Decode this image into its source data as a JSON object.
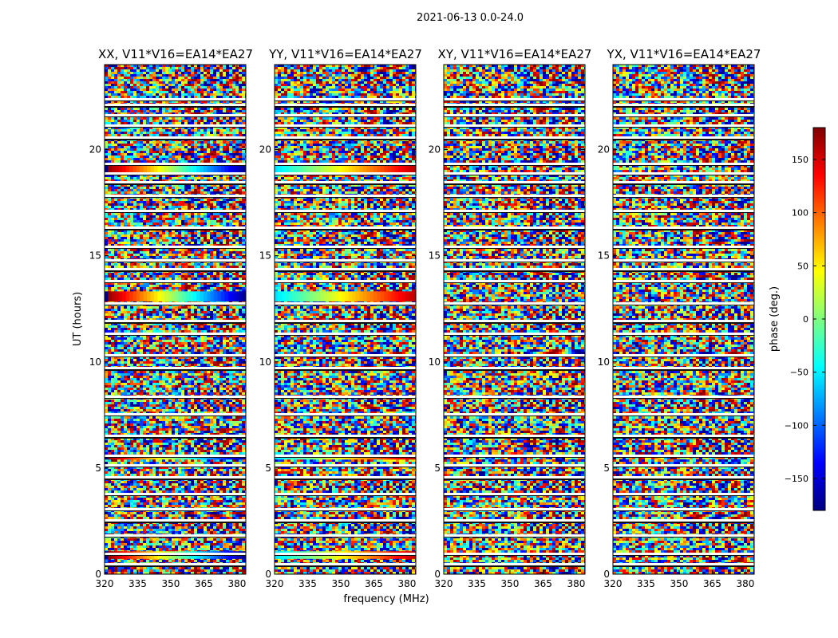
{
  "chart_data": {
    "type": "heatmap",
    "suptitle": "2021-06-13 0.0-24.0",
    "xlabel": "frequency (MHz)",
    "ylabel": "UT (hours)",
    "xlim": [
      320,
      384
    ],
    "ylim": [
      0,
      24
    ],
    "x_ticks": [
      320,
      335,
      350,
      365,
      380
    ],
    "y_ticks": [
      0,
      5,
      10,
      15,
      20
    ],
    "panels": [
      {
        "title": "XX, V11*V16=EA14*EA27",
        "polarization": "XX"
      },
      {
        "title": "YY, V11*V16=EA14*EA27",
        "polarization": "YY"
      },
      {
        "title": "XY, V11*V16=EA14*EA27",
        "polarization": "XY"
      },
      {
        "title": "YX, V11*V16=EA14*EA27",
        "polarization": "YX"
      }
    ],
    "colorbar": {
      "label": "phase (deg.)",
      "colormap": "jet",
      "range": [
        -180,
        180
      ],
      "ticks": [
        -150,
        -100,
        -50,
        0,
        50,
        100,
        150
      ],
      "tick_labels": [
        "−150",
        "−100",
        "−50",
        "0",
        "50",
        "100",
        "150"
      ]
    },
    "flagged_bands_ut": [
      0.45,
      0.95,
      1.8,
      2.5,
      3.05,
      3.75,
      4.55,
      5.1,
      5.55,
      6.5,
      7.5,
      8.35,
      9.7,
      10.3,
      11.3,
      11.9,
      12.75,
      13.8,
      14.35,
      14.75,
      15.4,
      16.3,
      17.1,
      17.8,
      18.45,
      18.85,
      19.3,
      20.55,
      21.1,
      21.6,
      22.1,
      22.35
    ]
  }
}
